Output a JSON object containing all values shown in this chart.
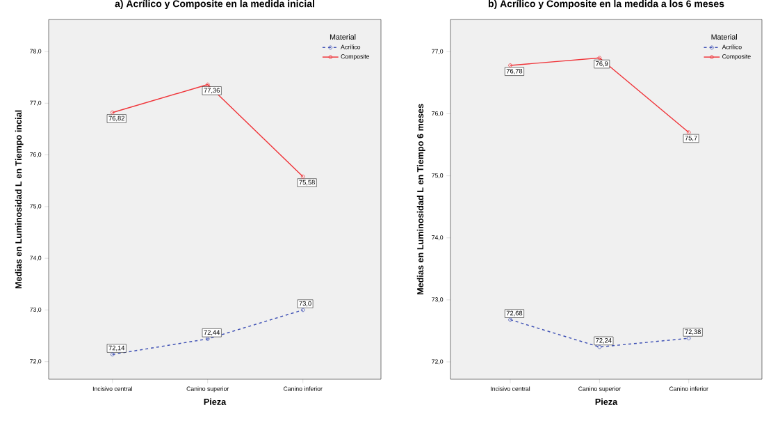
{
  "chart_data": [
    {
      "type": "line",
      "title": "a) Acrílico y Composite en la medida inicial",
      "xlabel": "Pieza",
      "ylabel": "Medias en Luminosidad L en Tiempo incial",
      "legend_title": "Material",
      "legend": "top right",
      "marker": "circle",
      "categories": [
        "Incisivo central",
        "Canino superior",
        "Canino inferior"
      ],
      "series": [
        {
          "name": "Acrílico",
          "color": "#4052b5",
          "line_style": "dashed",
          "values": [
            72.14,
            72.44,
            73.0
          ],
          "value_labels": [
            "72,14",
            "72,44",
            "73,0"
          ]
        },
        {
          "name": "Composite",
          "color": "#f0353a",
          "line_style": "solid",
          "values": [
            76.82,
            77.36,
            75.58
          ],
          "value_labels": [
            "76,82",
            "77,36",
            "75,58"
          ]
        }
      ],
      "ylim": [
        71.66,
        78.62
      ],
      "yticks": [
        {
          "value": 72,
          "label": "72,0"
        },
        {
          "value": 73,
          "label": "73,0"
        },
        {
          "value": 74,
          "label": "74,0"
        },
        {
          "value": 75,
          "label": "75,0"
        },
        {
          "value": 76,
          "label": "76,0"
        },
        {
          "value": 77,
          "label": "77,0"
        },
        {
          "value": 78,
          "label": "78,0"
        }
      ]
    },
    {
      "type": "line",
      "title": "b) Acrílico y Composite en la medida a los 6 meses",
      "xlabel": "Pieza",
      "ylabel": "Medias en Luminosidad L en Tiempo 6 meses",
      "legend_title": "Material",
      "legend": "top right",
      "marker": "circle",
      "categories": [
        "Incisivo central",
        "Canino superior",
        "Canino inferior"
      ],
      "series": [
        {
          "name": "Acrílico",
          "color": "#4052b5",
          "line_style": "dashed",
          "values": [
            72.68,
            72.24,
            72.38
          ],
          "value_labels": [
            "72,68",
            "72,24",
            "72,38"
          ]
        },
        {
          "name": "Composite",
          "color": "#f0353a",
          "line_style": "solid",
          "values": [
            76.78,
            76.9,
            75.7
          ],
          "value_labels": [
            "76,78",
            "76,9",
            "75,7"
          ]
        }
      ],
      "ylim": [
        71.72,
        77.52
      ],
      "yticks": [
        {
          "value": 72,
          "label": "72,0"
        },
        {
          "value": 73,
          "label": "73,0"
        },
        {
          "value": 74,
          "label": "74,0"
        },
        {
          "value": 75,
          "label": "75,0"
        },
        {
          "value": 76,
          "label": "76,0"
        },
        {
          "value": 77,
          "label": "77,0"
        }
      ]
    }
  ]
}
